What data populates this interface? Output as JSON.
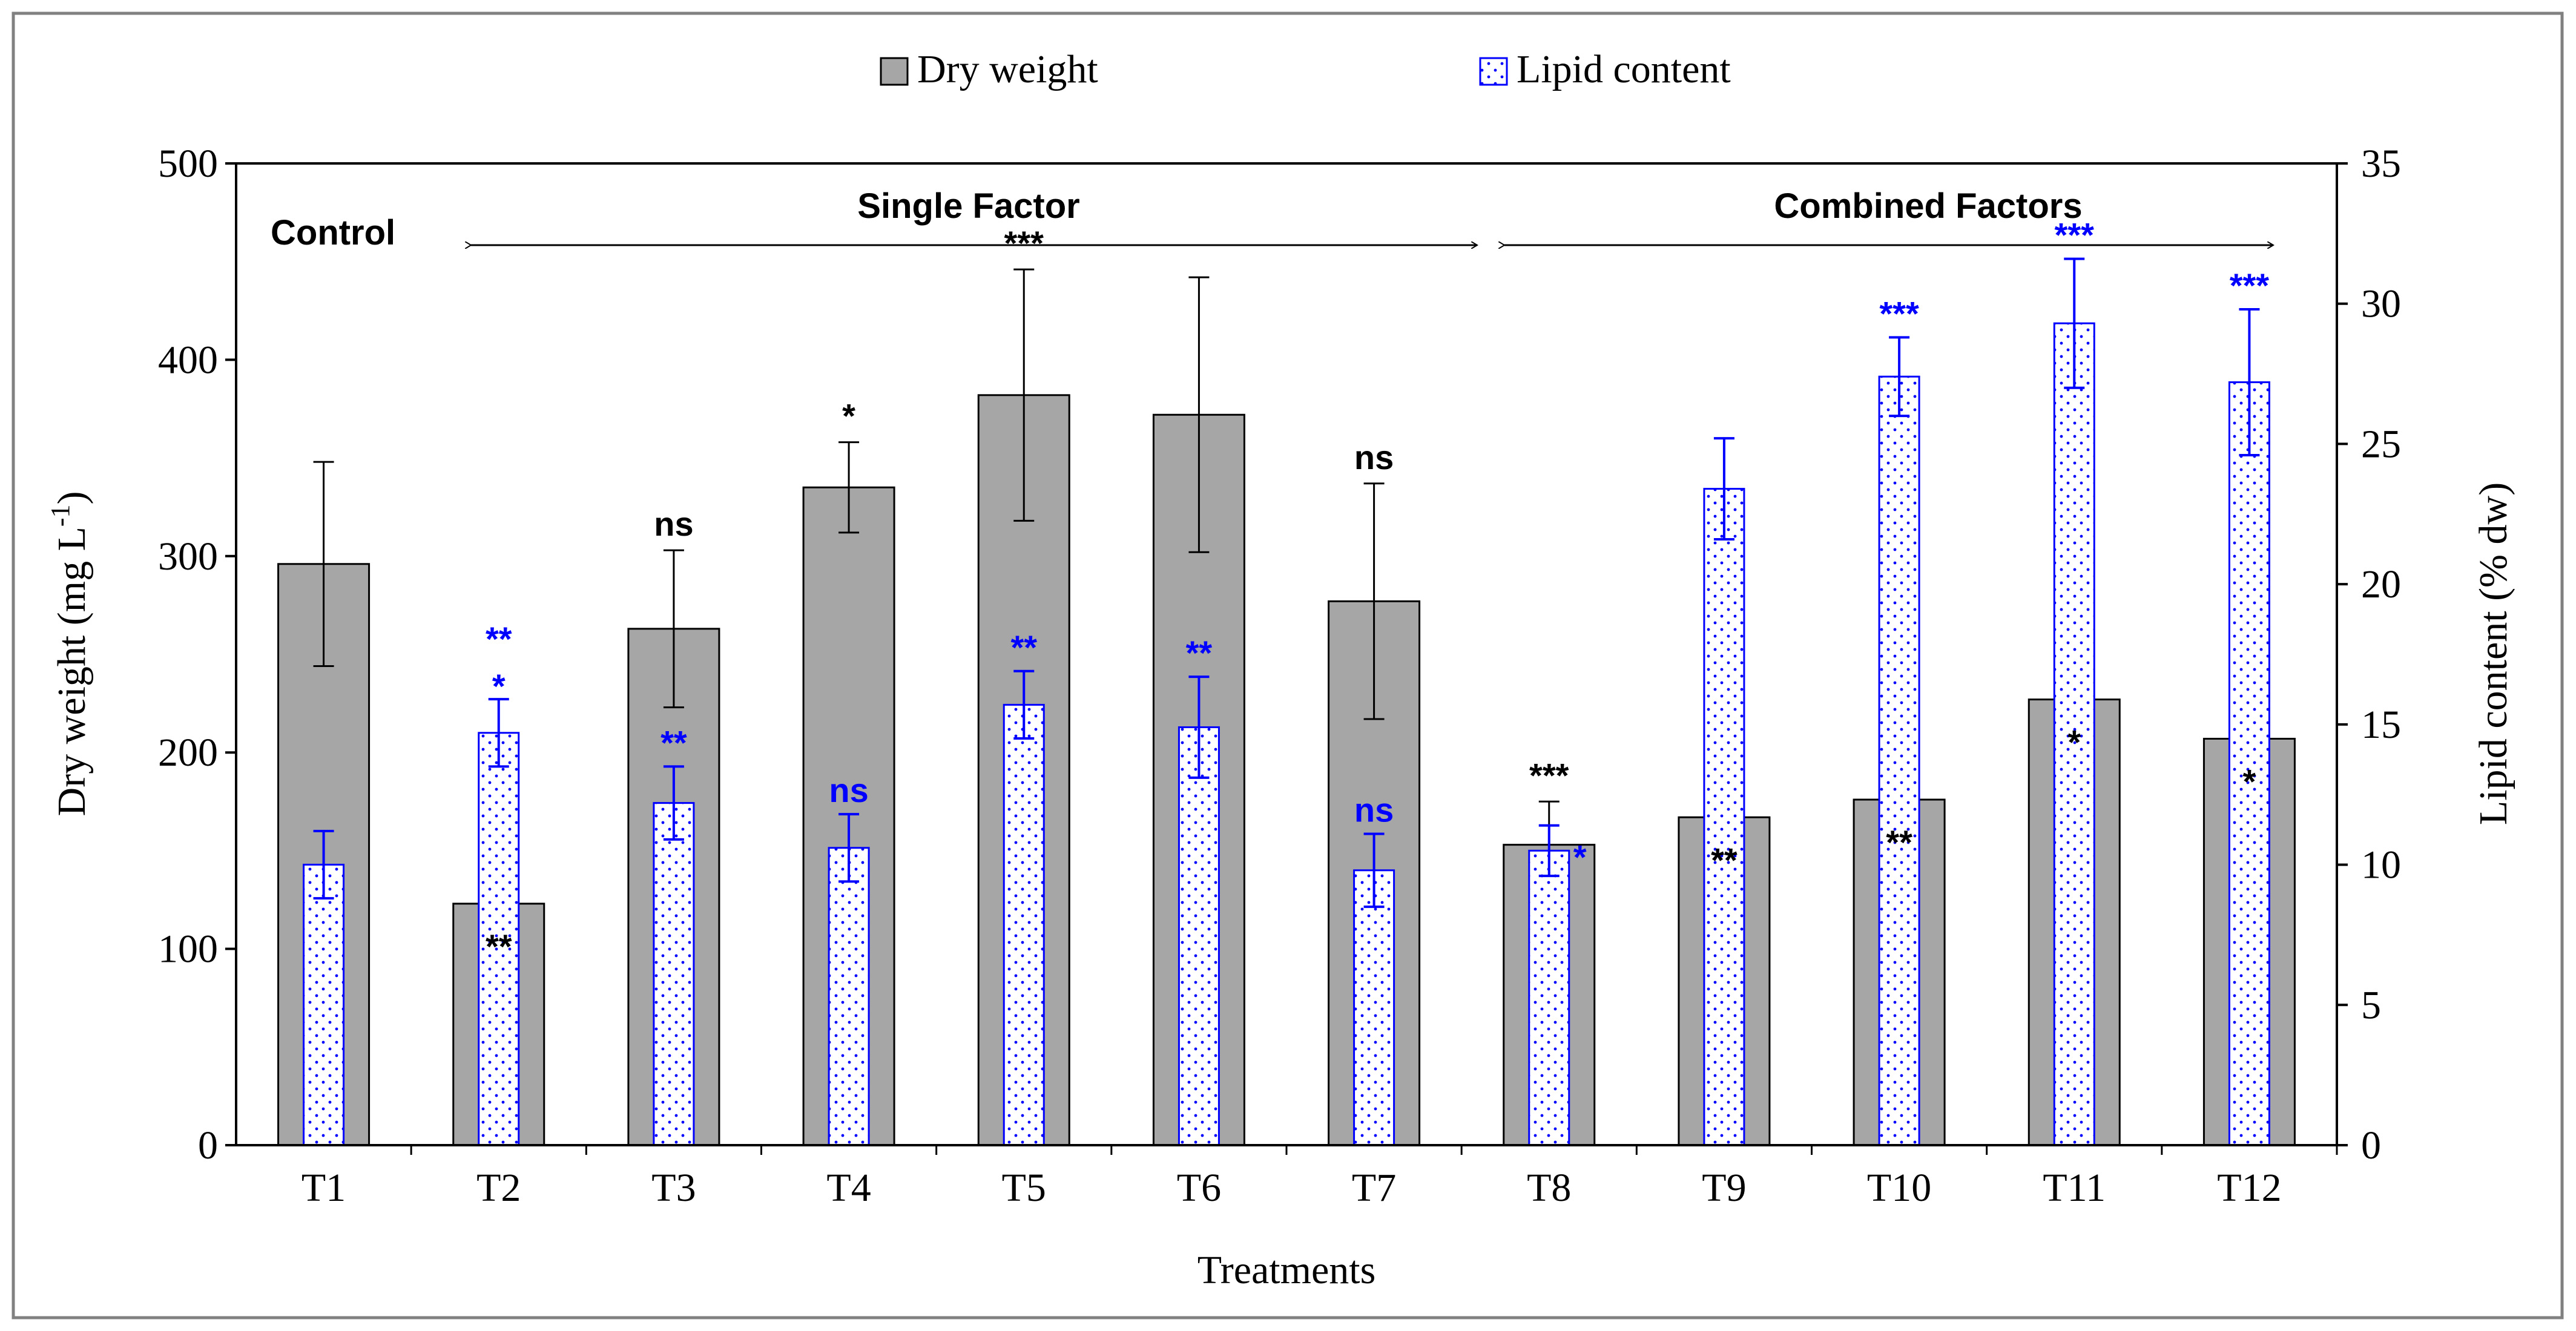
{
  "chart_data": {
    "type": "bar",
    "xlabel": "Treatments",
    "ylabel_left": "Dry weight (mg L",
    "ylabel_left_sup": "-1",
    "ylabel_left_close": ")",
    "ylabel_right": "Lipid content (% dw)",
    "ylim_left": [
      0,
      500
    ],
    "ylim_right": [
      0,
      35
    ],
    "yticks_left": [
      "0",
      "100",
      "200",
      "300",
      "400",
      "500"
    ],
    "yticks_right": [
      "0",
      "5",
      "10",
      "15",
      "20",
      "25",
      "30",
      "35"
    ],
    "categories": [
      "T1",
      "T2",
      "T3",
      "T4",
      "T5",
      "T6",
      "T7",
      "T8",
      "T9",
      "T10",
      "T11",
      "T12"
    ],
    "legend": [
      "Dry weight",
      "Lipid content"
    ],
    "legend_position": "top",
    "series": [
      {
        "name": "Dry weight",
        "axis": "left",
        "color": "#a6a6a6",
        "values": [
          296,
          123,
          263,
          335,
          382,
          372,
          277,
          153,
          167,
          176,
          227,
          207
        ],
        "errors": [
          52,
          0,
          40,
          23,
          64,
          70,
          60,
          22,
          0,
          0,
          0,
          0
        ],
        "significance": [
          "",
          "**",
          "ns",
          "*",
          "***",
          "",
          "ns",
          "***",
          "**",
          "**",
          "*",
          "*"
        ]
      },
      {
        "name": "Lipid content",
        "axis": "right",
        "color": "#0000ff",
        "values": [
          10.0,
          14.7,
          12.2,
          10.6,
          15.7,
          14.9,
          9.8,
          10.5,
          23.4,
          27.4,
          29.3,
          27.2
        ],
        "errors": [
          1.2,
          1.2,
          1.3,
          1.2,
          1.2,
          1.8,
          1.3,
          0.9,
          1.8,
          1.4,
          2.3,
          2.6
        ],
        "significance": [
          "",
          "**",
          "**",
          "ns",
          "**",
          "**",
          "ns",
          "*",
          "",
          "***",
          "***",
          "***"
        ]
      }
    ],
    "extra_marks": [
      {
        "category": "T2",
        "text": "*"
      }
    ],
    "annotations": {
      "control": "Control",
      "single": "Single Factor",
      "combined": "Combined Factors"
    }
  }
}
